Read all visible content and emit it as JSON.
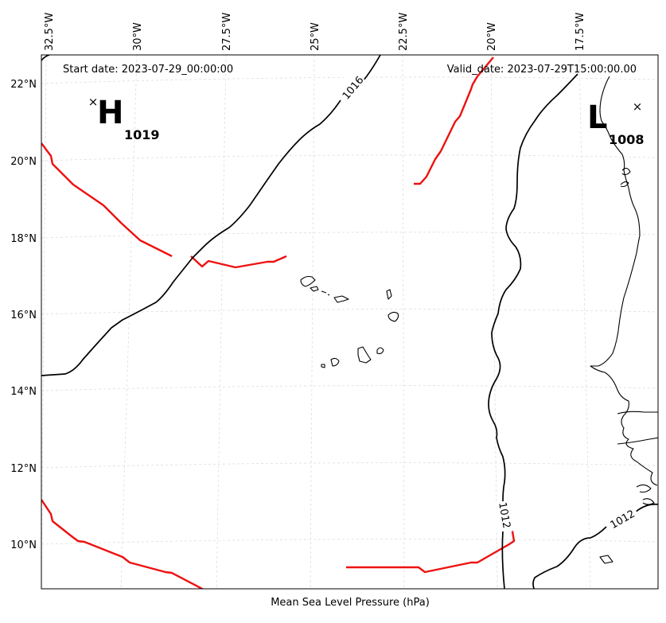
{
  "header": {
    "start_date": "Start date: 2023-07-29_00:00:00",
    "valid_date": "Valid_date: 2023-07-29T15:00:00.00"
  },
  "footer": {
    "caption": "Mean Sea Level Pressure (hPa)"
  },
  "axes": {
    "lon_labels": [
      "32.5°W",
      "30°W",
      "27.5°W",
      "25°W",
      "22.5°W",
      "20°W",
      "17.5°W"
    ],
    "lat_labels": [
      "22°N",
      "20°N",
      "18°N",
      "16°N",
      "14°N",
      "12°N",
      "10°N"
    ]
  },
  "pressure_centers": {
    "high": {
      "symbol": "H",
      "value": "1019",
      "marker": "×"
    },
    "low": {
      "symbol": "L",
      "value": "1008",
      "marker": "×"
    }
  },
  "contour_labels": {
    "c1016": "1016",
    "c1012_a": "1012",
    "c1012_b": "1012"
  },
  "colors": {
    "contour": "#000000",
    "front": "#ee1111",
    "grid": "#dddddd",
    "coast": "#000000"
  }
}
